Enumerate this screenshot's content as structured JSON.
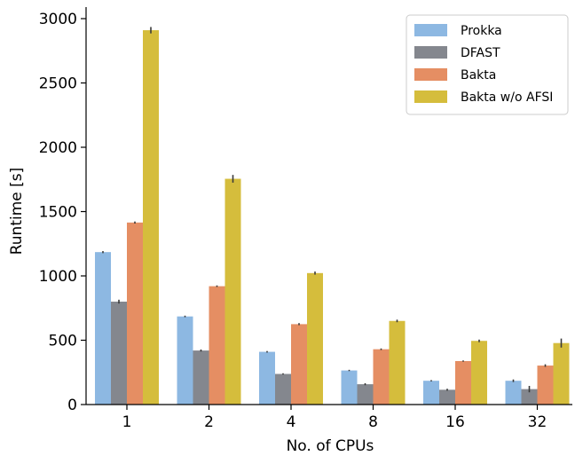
{
  "chart_data": {
    "type": "bar",
    "title": "",
    "xlabel": "No. of CPUs",
    "ylabel": "Runtime [s]",
    "ylim": [
      0,
      3100
    ],
    "yticks": [
      0,
      500,
      1000,
      1500,
      2000,
      2500,
      3000
    ],
    "categories": [
      "1",
      "2",
      "4",
      "8",
      "16",
      "32"
    ],
    "series": [
      {
        "name": "Prokka",
        "color": "#8db8e2",
        "values": [
          1185,
          685,
          410,
          265,
          185,
          185
        ],
        "errors": [
          8,
          6,
          6,
          5,
          5,
          10
        ]
      },
      {
        "name": "DFAST",
        "color": "#84878e",
        "values": [
          800,
          420,
          238,
          158,
          115,
          120
        ],
        "errors": [
          15,
          8,
          5,
          8,
          8,
          25
        ]
      },
      {
        "name": "Bakta",
        "color": "#e58e63",
        "values": [
          1415,
          920,
          625,
          430,
          338,
          303
        ],
        "errors": [
          8,
          6,
          8,
          6,
          5,
          10
        ]
      },
      {
        "name": "Bakta w/o AFSI",
        "color": "#d5bd3c",
        "values": [
          2910,
          1755,
          1022,
          650,
          495,
          478
        ],
        "errors": [
          25,
          30,
          12,
          10,
          10,
          35
        ]
      }
    ],
    "legend_position": "top-right",
    "grid": false
  }
}
